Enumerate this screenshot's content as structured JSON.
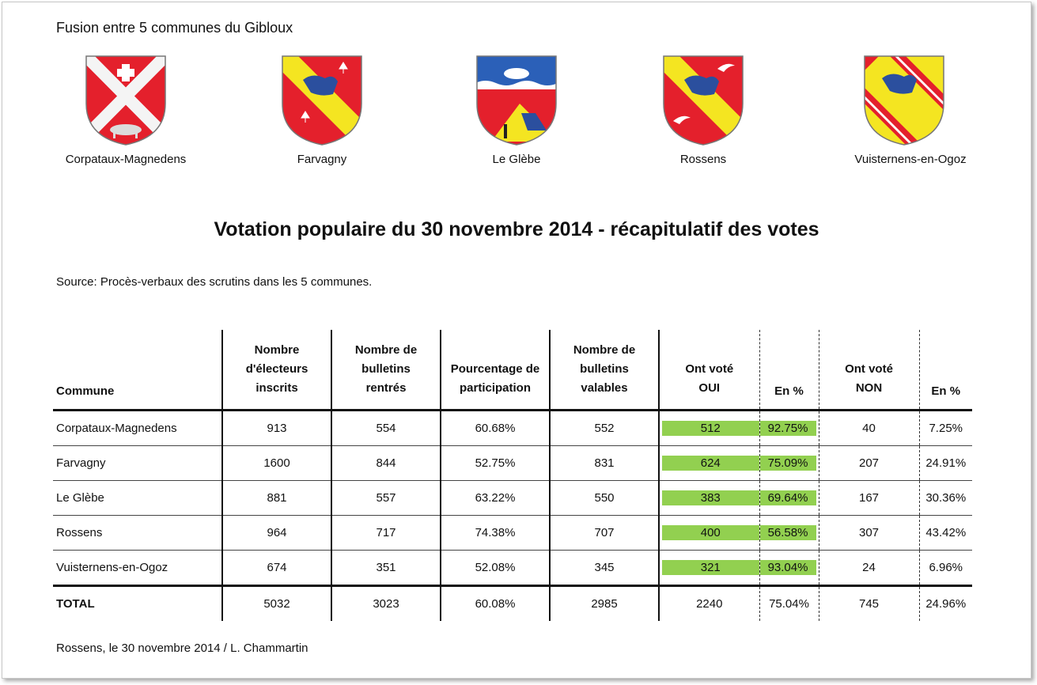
{
  "header": {
    "subtitle": "Fusion entre 5 communes du Gibloux"
  },
  "communes_coats": [
    {
      "label": "Corpataux-Magnedens"
    },
    {
      "label": "Farvagny"
    },
    {
      "label": "Le Glèbe"
    },
    {
      "label": "Rossens"
    },
    {
      "label": "Vuisternens-en-Ogoz"
    }
  ],
  "title": "Votation populaire du 30 novembre 2014  -  récapitulatif des votes",
  "source": "Source: Procès-verbaux des scrutins dans les 5 communes.",
  "table": {
    "headers": {
      "commune": "Commune",
      "inscrits": [
        "Nombre",
        "d'électeurs",
        "inscrits"
      ],
      "rentres": [
        "Nombre de",
        "bulletins",
        "rentrés"
      ],
      "participation": [
        "Pourcentage de",
        "participation"
      ],
      "valables": [
        "Nombre de",
        "bulletins",
        "valables"
      ],
      "oui": [
        "Ont voté",
        "OUI"
      ],
      "oui_pct": "En %",
      "non": [
        "Ont voté",
        "NON"
      ],
      "non_pct": "En %"
    },
    "rows": [
      {
        "commune": "Corpataux-Magnedens",
        "inscrits": "913",
        "rentres": "554",
        "participation": "60.68%",
        "valables": "552",
        "oui": "512",
        "oui_pct": "92.75%",
        "non": "40",
        "non_pct": "7.25%"
      },
      {
        "commune": "Farvagny",
        "inscrits": "1600",
        "rentres": "844",
        "participation": "52.75%",
        "valables": "831",
        "oui": "624",
        "oui_pct": "75.09%",
        "non": "207",
        "non_pct": "24.91%"
      },
      {
        "commune": "Le Glèbe",
        "inscrits": "881",
        "rentres": "557",
        "participation": "63.22%",
        "valables": "550",
        "oui": "383",
        "oui_pct": "69.64%",
        "non": "167",
        "non_pct": "30.36%"
      },
      {
        "commune": "Rossens",
        "inscrits": "964",
        "rentres": "717",
        "participation": "74.38%",
        "valables": "707",
        "oui": "400",
        "oui_pct": "56.58%",
        "non": "307",
        "non_pct": "43.42%"
      },
      {
        "commune": "Vuisternens-en-Ogoz",
        "inscrits": "674",
        "rentres": "351",
        "participation": "52.08%",
        "valables": "345",
        "oui": "321",
        "oui_pct": "93.04%",
        "non": "24",
        "non_pct": "6.96%"
      }
    ],
    "total": {
      "commune": "TOTAL",
      "inscrits": "5032",
      "rentres": "3023",
      "participation": "60.08%",
      "valables": "2985",
      "oui": "2240",
      "oui_pct": "75.04%",
      "non": "745",
      "non_pct": "24.96%"
    }
  },
  "footer": "Rossens, le 30 novembre 2014  /  L. Chammartin",
  "colors": {
    "highlight_green": "#92d050",
    "shield_red": "#e4202c",
    "shield_yellow": "#f4e521",
    "lion_blue": "#2b4f9e"
  }
}
